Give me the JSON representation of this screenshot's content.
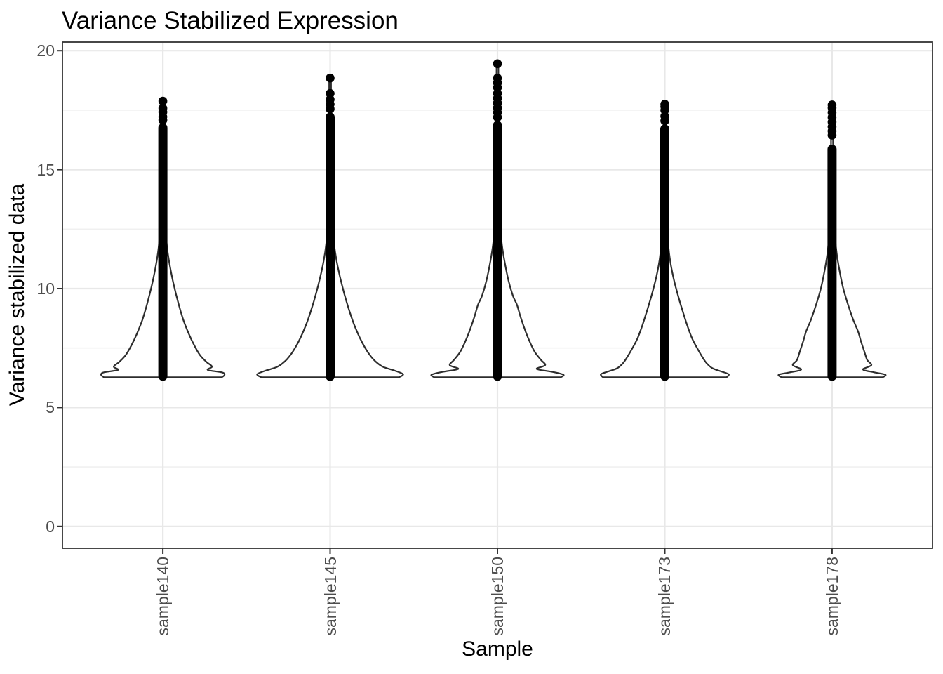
{
  "chart_data": {
    "type": "violin",
    "title": "Variance Stabilized Expression",
    "xlabel": "Sample",
    "ylabel": "Variance stabilized data",
    "legend_position": "none",
    "grid": true,
    "categories": [
      "sample140",
      "sample145",
      "sample150",
      "sample173",
      "sample178"
    ],
    "y_axis": {
      "major_ticks": [
        0,
        5,
        10,
        15,
        20
      ],
      "minor_gridlines": [
        2.5,
        7.5,
        12.5,
        17.5
      ],
      "range": [
        -0.92,
        20.36
      ]
    },
    "series": [
      {
        "name": "sample140",
        "violin_profile": [
          [
            6.27,
            84
          ],
          [
            6.38,
            88
          ],
          [
            6.48,
            84
          ],
          [
            6.58,
            64
          ],
          [
            6.72,
            70
          ],
          [
            6.92,
            62
          ],
          [
            7.2,
            53
          ],
          [
            7.6,
            45
          ],
          [
            8.1,
            37
          ],
          [
            8.7,
            29
          ],
          [
            9.4,
            22
          ],
          [
            10.1,
            16
          ],
          [
            10.8,
            11
          ],
          [
            11.5,
            7
          ],
          [
            12.2,
            4.5
          ],
          [
            13.0,
            2.8
          ],
          [
            14.0,
            1.8
          ],
          [
            15.5,
            1.4
          ],
          [
            17.88,
            1.3
          ]
        ],
        "points_dense_range": [
          6.12,
          16.95
        ],
        "outlier_dots": [
          17.08,
          17.22,
          17.42,
          17.58,
          17.88
        ],
        "max_value": 17.88
      },
      {
        "name": "sample145",
        "violin_profile": [
          [
            6.27,
            98
          ],
          [
            6.4,
            104
          ],
          [
            6.55,
            92
          ],
          [
            6.7,
            76
          ],
          [
            6.9,
            66
          ],
          [
            7.15,
            58
          ],
          [
            7.5,
            50
          ],
          [
            7.95,
            42
          ],
          [
            8.5,
            34
          ],
          [
            9.1,
            27
          ],
          [
            9.8,
            20
          ],
          [
            10.5,
            14
          ],
          [
            11.2,
            9
          ],
          [
            11.9,
            5.5
          ],
          [
            12.7,
            3.2
          ],
          [
            13.6,
            2.0
          ],
          [
            15.0,
            1.4
          ],
          [
            18.85,
            1.3
          ]
        ],
        "points_dense_range": [
          6.12,
          17.4
        ],
        "outlier_dots": [
          17.55,
          17.75,
          17.95,
          18.2,
          18.85
        ],
        "max_value": 18.85
      },
      {
        "name": "sample150",
        "violin_profile": [
          [
            6.27,
            90
          ],
          [
            6.38,
            94
          ],
          [
            6.5,
            78
          ],
          [
            6.62,
            56
          ],
          [
            6.78,
            68
          ],
          [
            7.0,
            62
          ],
          [
            7.3,
            54
          ],
          [
            7.7,
            47
          ],
          [
            8.2,
            40
          ],
          [
            8.8,
            33
          ],
          [
            9.3,
            28
          ],
          [
            9.7,
            22
          ],
          [
            10.3,
            16
          ],
          [
            11.0,
            11
          ],
          [
            11.7,
            7
          ],
          [
            12.4,
            4.5
          ],
          [
            13.3,
            2.8
          ],
          [
            14.5,
            1.8
          ],
          [
            19.45,
            1.3
          ]
        ],
        "points_dense_range": [
          6.12,
          17.05
        ],
        "outlier_dots": [
          17.2,
          17.4,
          17.6,
          17.8,
          18.0,
          18.2,
          18.45,
          18.65,
          18.85,
          19.45
        ],
        "max_value": 19.45
      },
      {
        "name": "sample173",
        "violin_profile": [
          [
            6.27,
            88
          ],
          [
            6.4,
            91
          ],
          [
            6.52,
            80
          ],
          [
            6.65,
            68
          ],
          [
            6.85,
            60
          ],
          [
            7.1,
            54
          ],
          [
            7.45,
            47
          ],
          [
            7.9,
            39
          ],
          [
            8.45,
            32
          ],
          [
            9.1,
            25
          ],
          [
            9.8,
            18
          ],
          [
            10.5,
            12
          ],
          [
            11.2,
            7.5
          ],
          [
            11.9,
            4.8
          ],
          [
            12.7,
            3.0
          ],
          [
            13.7,
            1.8
          ],
          [
            15.2,
            1.4
          ],
          [
            17.75,
            1.3
          ]
        ],
        "points_dense_range": [
          6.12,
          16.9
        ],
        "outlier_dots": [
          17.05,
          17.25,
          17.5,
          17.65,
          17.75
        ],
        "max_value": 17.75
      },
      {
        "name": "sample178",
        "violin_profile": [
          [
            6.27,
            72
          ],
          [
            6.38,
            76
          ],
          [
            6.48,
            60
          ],
          [
            6.6,
            44
          ],
          [
            6.78,
            56
          ],
          [
            7.0,
            50
          ],
          [
            7.35,
            46
          ],
          [
            7.8,
            41
          ],
          [
            8.2,
            37
          ],
          [
            8.7,
            30
          ],
          [
            9.3,
            23
          ],
          [
            10.0,
            16
          ],
          [
            10.7,
            11
          ],
          [
            11.4,
            7
          ],
          [
            12.1,
            4.5
          ],
          [
            13.0,
            2.8
          ],
          [
            14.2,
            1.8
          ],
          [
            17.7,
            1.3
          ]
        ],
        "points_dense_range": [
          6.12,
          16.05
        ],
        "outlier_dots": [
          16.45,
          16.62,
          16.8,
          17.0,
          17.2,
          17.4,
          17.6,
          17.72
        ],
        "max_value": 17.72
      }
    ],
    "style": {
      "background": "#ffffff",
      "panel_background": "#ffffff",
      "panel_border": "#333333",
      "grid_major": "#e8e8e8",
      "grid_minor": "#f0f0f0",
      "tick_mark": "#333333",
      "tick_label_color": "#4d4d4d",
      "text_color": "#000000",
      "violin_stroke": "#2d2d2d",
      "violin_fill": "#ffffff",
      "point_color": "#000000"
    }
  }
}
